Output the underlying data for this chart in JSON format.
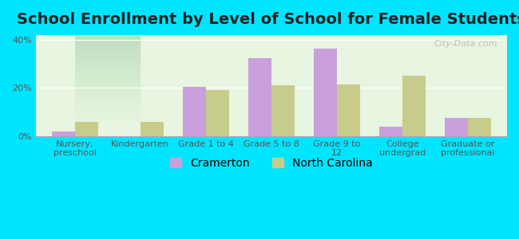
{
  "title": "School Enrollment by Level of School for Female Students",
  "categories": [
    "Nursery,\npreschool",
    "Kindergarten",
    "Grade 1 to 4",
    "Grade 5 to 8",
    "Grade 9 to\n12",
    "College\nundergrad",
    "Graduate or\nprofessional"
  ],
  "cramerton": [
    2.0,
    0.0,
    20.5,
    32.5,
    36.5,
    4.0,
    7.5
  ],
  "north_carolina": [
    6.0,
    6.0,
    19.0,
    21.0,
    21.5,
    25.0,
    7.5
  ],
  "cramerton_color": "#c9a0dc",
  "nc_color": "#c8cc8a",
  "background_color": "#00e5ff",
  "plot_bg_start": "#e8f5e0",
  "plot_bg_end": "#ffffff",
  "ylim": [
    0,
    42
  ],
  "yticks": [
    0,
    20,
    40
  ],
  "ytick_labels": [
    "0%",
    "20%",
    "40%"
  ],
  "legend_cramerton": "Cramerton",
  "legend_nc": "North Carolina",
  "bar_width": 0.35,
  "title_fontsize": 14,
  "tick_fontsize": 8,
  "legend_fontsize": 10
}
